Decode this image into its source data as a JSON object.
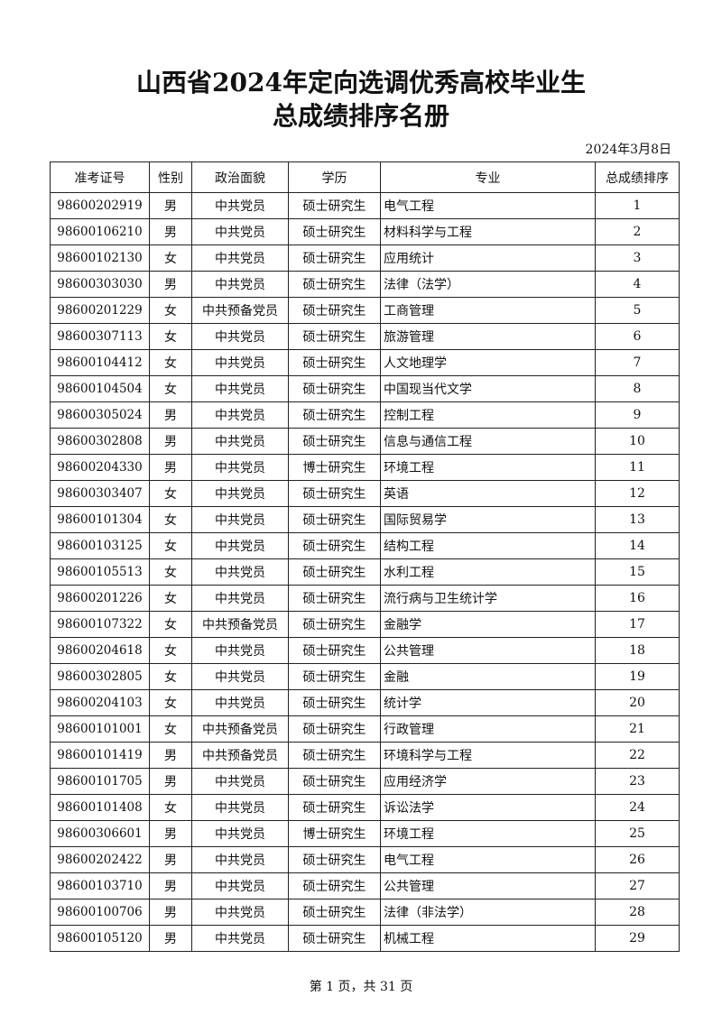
{
  "title_line1": "山西省2024年定向选调优秀高校毕业生",
  "title_line2": "总成绩排序名册",
  "date": "2024年3月8日",
  "columns": [
    "准考证号",
    "性别",
    "政治面貌",
    "学历",
    "专业",
    "总成绩排序"
  ],
  "rows": [
    [
      "98600202919",
      "男",
      "中共党员",
      "硕士研究生",
      "电气工程",
      "1"
    ],
    [
      "98600106210",
      "男",
      "中共党员",
      "硕士研究生",
      "材料科学与工程",
      "2"
    ],
    [
      "98600102130",
      "女",
      "中共党员",
      "硕士研究生",
      "应用统计",
      "3"
    ],
    [
      "98600303030",
      "男",
      "中共党员",
      "硕士研究生",
      "法律（法学）",
      "4"
    ],
    [
      "98600201229",
      "女",
      "中共预备党员",
      "硕士研究生",
      "工商管理",
      "5"
    ],
    [
      "98600307113",
      "女",
      "中共党员",
      "硕士研究生",
      "旅游管理",
      "6"
    ],
    [
      "98600104412",
      "女",
      "中共党员",
      "硕士研究生",
      "人文地理学",
      "7"
    ],
    [
      "98600104504",
      "女",
      "中共党员",
      "硕士研究生",
      "中国现当代文学",
      "8"
    ],
    [
      "98600305024",
      "男",
      "中共党员",
      "硕士研究生",
      "控制工程",
      "9"
    ],
    [
      "98600302808",
      "男",
      "中共党员",
      "硕士研究生",
      "信息与通信工程",
      "10"
    ],
    [
      "98600204330",
      "男",
      "中共党员",
      "博士研究生",
      "环境工程",
      "11"
    ],
    [
      "98600303407",
      "女",
      "中共党员",
      "硕士研究生",
      "英语",
      "12"
    ],
    [
      "98600101304",
      "女",
      "中共党员",
      "硕士研究生",
      "国际贸易学",
      "13"
    ],
    [
      "98600103125",
      "女",
      "中共党员",
      "硕士研究生",
      "结构工程",
      "14"
    ],
    [
      "98600105513",
      "女",
      "中共党员",
      "硕士研究生",
      "水利工程",
      "15"
    ],
    [
      "98600201226",
      "女",
      "中共党员",
      "硕士研究生",
      "流行病与卫生统计学",
      "16"
    ],
    [
      "98600107322",
      "女",
      "中共预备党员",
      "硕士研究生",
      "金融学",
      "17"
    ],
    [
      "98600204618",
      "女",
      "中共党员",
      "硕士研究生",
      "公共管理",
      "18"
    ],
    [
      "98600302805",
      "女",
      "中共党员",
      "硕士研究生",
      "金融",
      "19"
    ],
    [
      "98600204103",
      "女",
      "中共党员",
      "硕士研究生",
      "统计学",
      "20"
    ],
    [
      "98600101001",
      "女",
      "中共预备党员",
      "硕士研究生",
      "行政管理",
      "21"
    ],
    [
      "98600101419",
      "男",
      "中共预备党员",
      "硕士研究生",
      "环境科学与工程",
      "22"
    ],
    [
      "98600101705",
      "男",
      "中共党员",
      "硕士研究生",
      "应用经济学",
      "23"
    ],
    [
      "98600101408",
      "女",
      "中共党员",
      "硕士研究生",
      "诉讼法学",
      "24"
    ],
    [
      "98600306601",
      "男",
      "中共党员",
      "博士研究生",
      "环境工程",
      "25"
    ],
    [
      "98600202422",
      "男",
      "中共党员",
      "硕士研究生",
      "电气工程",
      "26"
    ],
    [
      "98600103710",
      "男",
      "中共党员",
      "硕士研究生",
      "公共管理",
      "27"
    ],
    [
      "98600100706",
      "男",
      "中共党员",
      "硕士研究生",
      "法律（非法学）",
      "28"
    ],
    [
      "98600105120",
      "男",
      "中共党员",
      "硕士研究生",
      "机械工程",
      "29"
    ]
  ],
  "footer": "第 1 页，共 31 页"
}
